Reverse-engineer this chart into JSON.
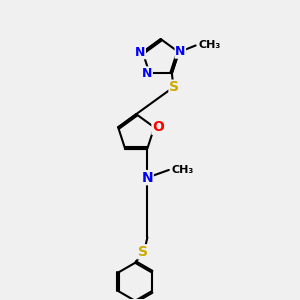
{
  "bg_color": "#f0f0f0",
  "bond_color": "#000000",
  "atom_colors": {
    "N": "#0000ff",
    "O": "#ff0000",
    "S": "#ccaa00",
    "C": "#000000"
  },
  "line_width": 1.5,
  "font_size": 9
}
